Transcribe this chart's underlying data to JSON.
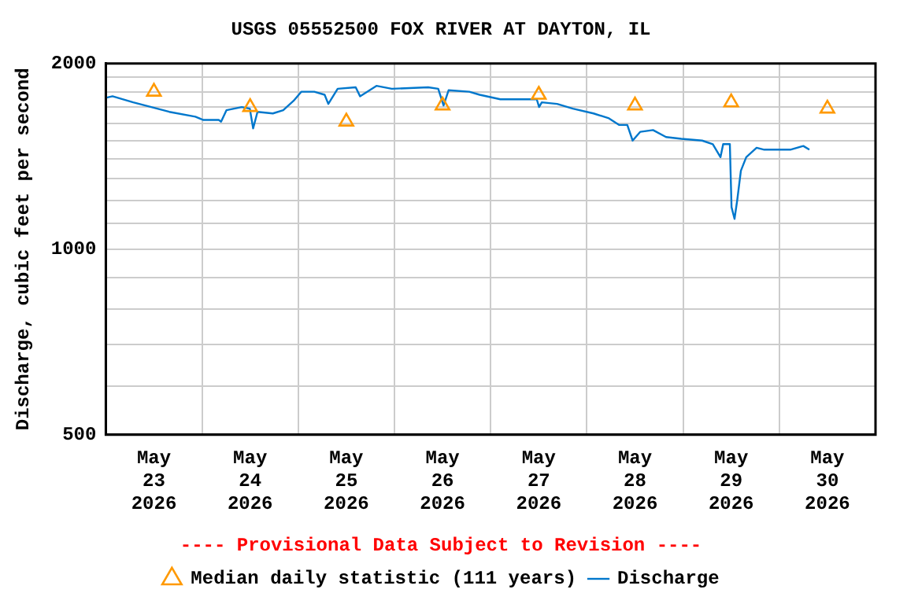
{
  "chart_data": {
    "type": "line",
    "title": "USGS 05552500 FOX RIVER AT DAYTON, IL",
    "ylabel": "Discharge, cubic feet per second",
    "annotations": [
      "---- Provisional Data Subject to Revision ----"
    ],
    "log": "y",
    "grid": true,
    "legend": "bottom",
    "xlim": [
      "2026-05-23T00:00",
      "2026-05-31T00:00"
    ],
    "xticks": [
      {
        "value": "2026-05-23T00:00",
        "label": null
      },
      {
        "value": "2026-05-23T12:00",
        "label": "May\n23\n2026"
      },
      {
        "value": "2026-05-24T00:00",
        "label": null
      },
      {
        "value": "2026-05-24T12:00",
        "label": "May\n24\n2026"
      },
      {
        "value": "2026-05-25T00:00",
        "label": null
      },
      {
        "value": "2026-05-25T12:00",
        "label": "May\n25\n2026"
      },
      {
        "value": "2026-05-26T00:00",
        "label": null
      },
      {
        "value": "2026-05-26T12:00",
        "label": "May\n26\n2026"
      },
      {
        "value": "2026-05-27T00:00",
        "label": null
      },
      {
        "value": "2026-05-27T12:00",
        "label": "May\n27\n2026"
      },
      {
        "value": "2026-05-28T00:00",
        "label": null
      },
      {
        "value": "2026-05-28T12:00",
        "label": "May\n28\n2026"
      },
      {
        "value": "2026-05-29T00:00",
        "label": null
      },
      {
        "value": "2026-05-29T12:00",
        "label": "May\n29\n2026"
      },
      {
        "value": "2026-05-30T00:00",
        "label": null
      },
      {
        "value": "2026-05-30T12:00",
        "label": "May\n30\n2026"
      },
      {
        "value": "2026-05-31T00:00",
        "label": null
      }
    ],
    "ylim": [
      500,
      2000
    ],
    "yticks": [
      500,
      {
        "value": 600,
        "label": null
      },
      {
        "value": 700,
        "label": null
      },
      {
        "value": 800,
        "label": null
      },
      {
        "value": 900,
        "label": null
      },
      1000,
      {
        "value": 1100,
        "label": null
      },
      {
        "value": 1200,
        "label": null
      },
      {
        "value": 1300,
        "label": null
      },
      {
        "value": 1400,
        "label": null
      },
      {
        "value": 1500,
        "label": null
      },
      {
        "value": 1600,
        "label": null
      },
      {
        "value": 1700,
        "label": null
      },
      {
        "value": 1800,
        "label": null
      },
      {
        "value": 1900,
        "label": null
      },
      2000
    ],
    "series": [
      {
        "name": "Median daily statistic (111 years)",
        "type": "scatter",
        "marker": "triangle",
        "color": "#ff9900",
        "x": [
          "2026-05-23T12:00",
          "2026-05-24T12:00",
          "2026-05-25T12:00",
          "2026-05-26T12:00",
          "2026-05-27T12:00",
          "2026-05-28T12:00",
          "2026-05-29T12:00",
          "2026-05-30T12:00"
        ],
        "values": [
          1800,
          1700,
          1610,
          1710,
          1780,
          1710,
          1730,
          1690
        ]
      },
      {
        "name": "Discharge",
        "marker": "none",
        "line_style": "solid",
        "color": "#0077cc",
        "x": [
          "2026-05-23T00:00",
          "2026-05-23T01:40",
          "2026-05-23T06:50",
          "2026-05-23T11:20",
          "2026-05-23T15:50",
          "2026-05-23T22:20",
          "2026-05-24T00:20",
          "2026-05-24T04:10",
          "2026-05-24T04:45",
          "2026-05-24T06:05",
          "2026-05-24T09:55",
          "2026-05-24T11:55",
          "2026-05-24T12:45",
          "2026-05-24T13:50",
          "2026-05-24T17:40",
          "2026-05-24T20:15",
          "2026-05-24T22:50",
          "2026-05-25T00:45",
          "2026-05-25T04:00",
          "2026-05-25T06:35",
          "2026-05-25T07:30",
          "2026-05-25T09:50",
          "2026-05-25T14:20",
          "2026-05-25T15:25",
          "2026-05-25T19:30",
          "2026-05-25T23:20",
          "2026-05-26T08:25",
          "2026-05-26T10:55",
          "2026-05-26T12:15",
          "2026-05-26T13:30",
          "2026-05-26T18:40",
          "2026-05-26T21:15",
          "2026-05-27T02:25",
          "2026-05-27T11:30",
          "2026-05-27T12:05",
          "2026-05-27T12:45",
          "2026-05-27T16:35",
          "2026-05-27T20:30",
          "2026-05-28T01:40",
          "2026-05-28T05:30",
          "2026-05-28T08:05",
          "2026-05-28T10:05",
          "2026-05-28T11:25",
          "2026-05-28T13:20",
          "2026-05-28T16:30",
          "2026-05-28T19:45",
          "2026-05-28T23:35",
          "2026-05-29T04:45",
          "2026-05-29T07:25",
          "2026-05-29T09:20",
          "2026-05-29T10:00",
          "2026-05-29T11:40",
          "2026-05-29T12:05",
          "2026-05-29T12:50",
          "2026-05-29T13:30",
          "2026-05-29T14:25",
          "2026-05-29T15:45",
          "2026-05-29T18:20",
          "2026-05-29T20:15",
          "2026-05-30T02:45",
          "2026-05-30T06:00",
          "2026-05-30T07:30"
        ],
        "values": [
          1760,
          1770,
          1730,
          1700,
          1670,
          1640,
          1620,
          1620,
          1610,
          1680,
          1700,
          1690,
          1570,
          1670,
          1660,
          1680,
          1740,
          1800,
          1800,
          1780,
          1720,
          1820,
          1830,
          1770,
          1840,
          1820,
          1830,
          1820,
          1710,
          1810,
          1800,
          1780,
          1750,
          1750,
          1700,
          1730,
          1720,
          1690,
          1660,
          1630,
          1590,
          1590,
          1500,
          1550,
          1560,
          1520,
          1510,
          1500,
          1480,
          1410,
          1480,
          1480,
          1170,
          1120,
          1200,
          1340,
          1410,
          1460,
          1450,
          1450,
          1470,
          1450
        ]
      }
    ]
  }
}
